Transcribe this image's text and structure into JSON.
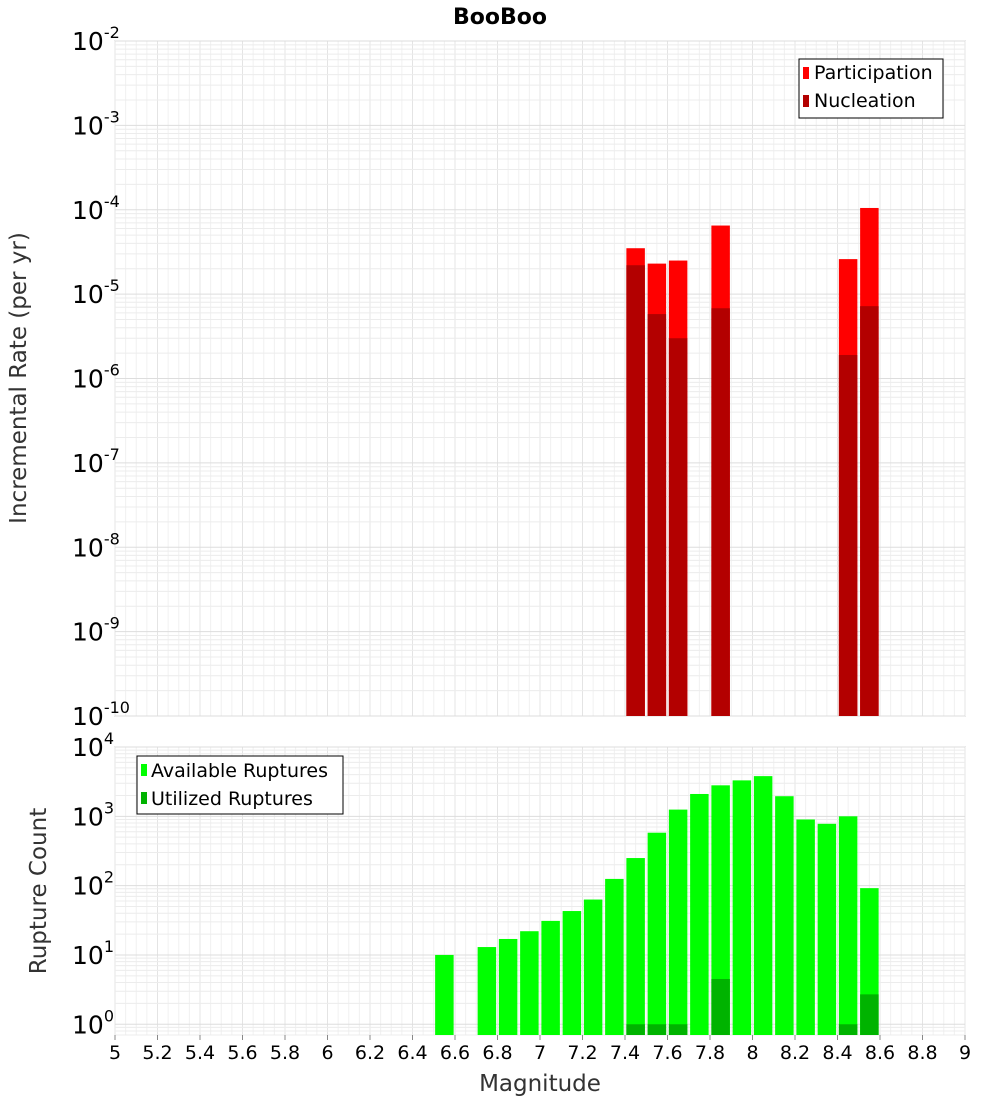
{
  "chart_data": [
    {
      "type": "bar",
      "title": "BooBoo",
      "xlabel": "",
      "ylabel": "Incremental Rate (per yr)",
      "yscale": "log",
      "ylim": [
        1e-10,
        0.01
      ],
      "xlim": [
        5,
        9
      ],
      "legend_position": "top-right",
      "colors": {
        "Participation": "#ff0000",
        "Nucleation": "#b30000"
      },
      "ytick_exponents": [
        "-10",
        "-9",
        "-8",
        "-7",
        "-6",
        "-5",
        "-4",
        "-3",
        "-2"
      ],
      "series": [
        {
          "name": "Participation",
          "x": [
            7.45,
            7.55,
            7.65,
            7.85,
            8.45,
            8.55
          ],
          "values": [
            3.5e-05,
            2.3e-05,
            2.5e-05,
            6.5e-05,
            2.6e-05,
            0.000105
          ]
        },
        {
          "name": "Nucleation",
          "x": [
            7.45,
            7.55,
            7.65,
            7.85,
            8.45,
            8.55
          ],
          "values": [
            2.2e-05,
            5.8e-06,
            3e-06,
            6.8e-06,
            1.9e-06,
            7.2e-06
          ]
        }
      ]
    },
    {
      "type": "bar",
      "title": "",
      "xlabel": "Magnitude",
      "ylabel": "Rupture Count",
      "yscale": "log",
      "ylim": [
        0.7,
        10000
      ],
      "xlim": [
        5,
        9
      ],
      "legend_position": "top-left",
      "colors": {
        "Available Ruptures": "#00ff00",
        "Utilized Ruptures": "#00b300"
      },
      "xticks": [
        "5",
        "5.2",
        "5.4",
        "5.6",
        "5.8",
        "6",
        "6.2",
        "6.4",
        "6.6",
        "6.8",
        "7",
        "7.2",
        "7.4",
        "7.6",
        "7.8",
        "8",
        "8.2",
        "8.4",
        "8.6",
        "8.8",
        "9"
      ],
      "ytick_exponents": [
        "0",
        "1",
        "2",
        "3",
        "4"
      ],
      "series": [
        {
          "name": "Available Ruptures",
          "x": [
            6.55,
            6.75,
            6.85,
            6.95,
            7.05,
            7.15,
            7.25,
            7.35,
            7.45,
            7.55,
            7.65,
            7.75,
            7.85,
            7.95,
            8.05,
            8.15,
            8.25,
            8.35,
            8.45,
            8.55
          ],
          "values": [
            10,
            13,
            17,
            22,
            31,
            43,
            63,
            125,
            250,
            580,
            1250,
            2100,
            2800,
            3300,
            3800,
            1950,
            900,
            780,
            1000,
            92
          ]
        },
        {
          "name": "Utilized Ruptures",
          "x": [
            7.45,
            7.55,
            7.65,
            7.85,
            8.45,
            8.55
          ],
          "values": [
            1,
            1,
            1,
            4.5,
            1,
            2.7
          ]
        }
      ]
    }
  ]
}
